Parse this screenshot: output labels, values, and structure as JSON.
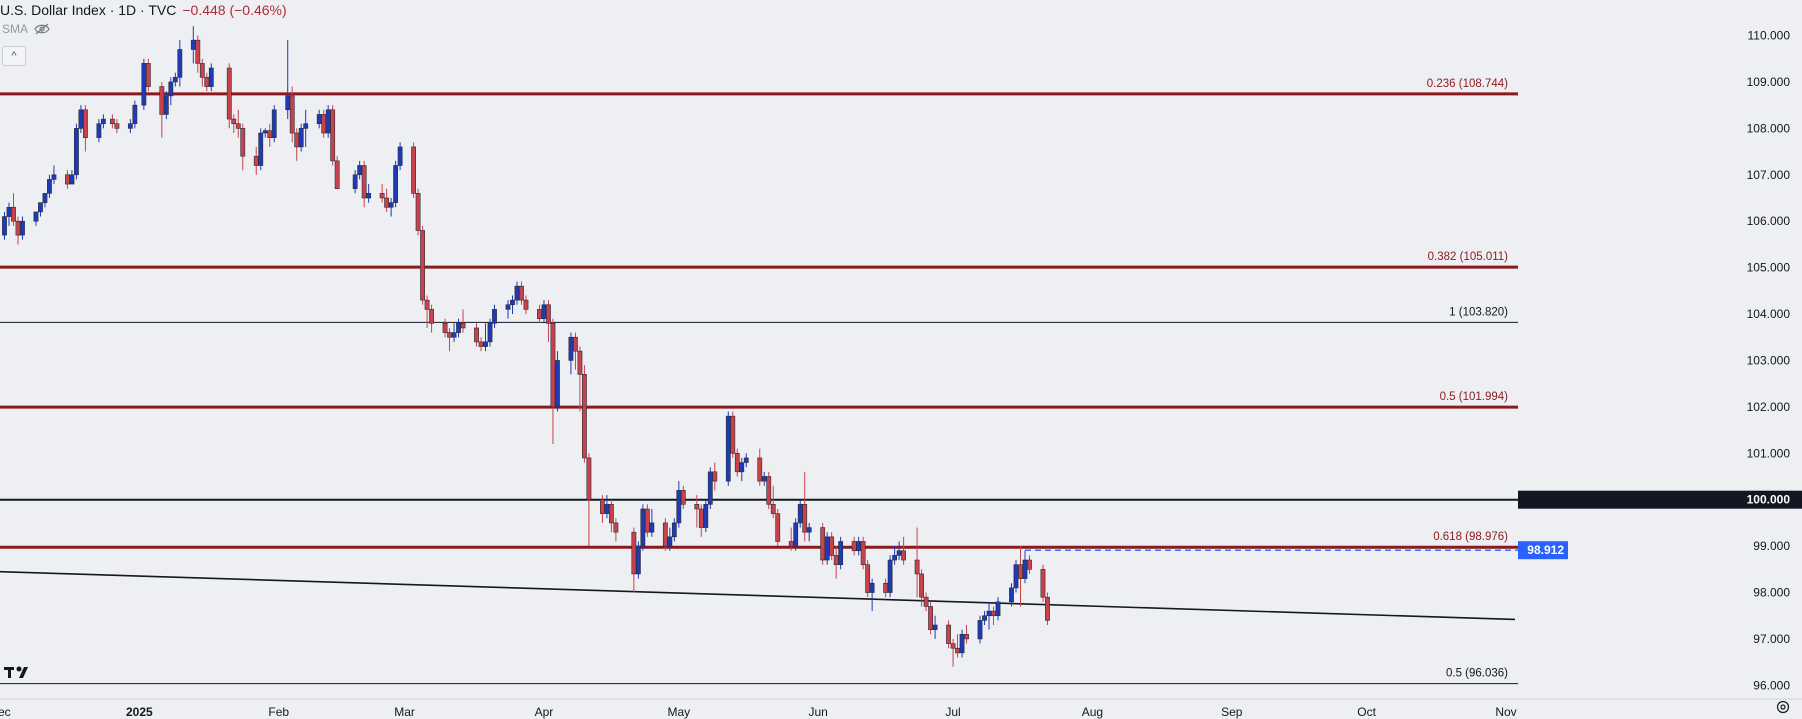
{
  "header": {
    "title": "U.S. Dollar Index · 1D · TVC",
    "change": "−0.448 (−0.46%)",
    "sma_label": "SMA",
    "collapse_glyph": "^"
  },
  "icons": {
    "visibility": "eye-slash-icon",
    "logo": "tradingview-logo-icon",
    "settings": "gear-icon"
  },
  "colors": {
    "bg": "#eeeff2",
    "up": "#1e3ab5",
    "down": "#c8424c",
    "fib": "#8b1a1f",
    "text": "#131722",
    "fib_text": "#8b1a1f",
    "price_badge": "#2962ff"
  },
  "chart_data": {
    "type": "candlestick",
    "x_axis_labels": [
      {
        "label": "Dec",
        "date": "2024-12-01",
        "bold": false
      },
      {
        "label": "2025",
        "date": "2025-01-01",
        "bold": true
      },
      {
        "label": "Feb",
        "date": "2025-02-01",
        "bold": false
      },
      {
        "label": "Mar",
        "date": "2025-03-01",
        "bold": false
      },
      {
        "label": "Apr",
        "date": "2025-04-01",
        "bold": false
      },
      {
        "label": "May",
        "date": "2025-05-01",
        "bold": false
      },
      {
        "label": "Jun",
        "date": "2025-06-01",
        "bold": false
      },
      {
        "label": "Jul",
        "date": "2025-07-01",
        "bold": false
      },
      {
        "label": "Aug",
        "date": "2025-08-01",
        "bold": false
      },
      {
        "label": "Sep",
        "date": "2025-09-01",
        "bold": false
      },
      {
        "label": "Oct",
        "date": "2025-10-01",
        "bold": false
      },
      {
        "label": "Nov",
        "date": "2025-11-01",
        "bold": false
      }
    ],
    "y_axis_labels": [
      "110.000",
      "109.000",
      "108.000",
      "107.000",
      "106.000",
      "105.000",
      "104.000",
      "103.000",
      "102.000",
      "101.000",
      "100.000",
      "99.000",
      "98.000",
      "97.000",
      "96.000"
    ],
    "y_range": [
      95.9,
      110.55
    ],
    "x_range": [
      "2024-12-01",
      "2025-11-03"
    ],
    "levels": [
      {
        "value": 108.744,
        "label": "0.236 (108.744)",
        "style": "fib"
      },
      {
        "value": 105.011,
        "label": "0.382 (105.011)",
        "style": "fib"
      },
      {
        "value": 103.82,
        "label": "1 (103.820)",
        "style": "thin"
      },
      {
        "value": 101.994,
        "label": "0.5 (101.994)",
        "style": "fib"
      },
      {
        "value": 100.0,
        "label": "100.000",
        "style": "round",
        "badge": "100.000"
      },
      {
        "value": 98.976,
        "label": "0.618 (98.976)",
        "style": "fib"
      },
      {
        "value": 96.036,
        "label": "0.5 (96.036)",
        "style": "thin"
      }
    ],
    "trendline": {
      "start_date": "2024-12-01",
      "start_value": 98.45,
      "end_date": "2025-11-03",
      "end_value": 97.42
    },
    "last_price": {
      "value": 98.912,
      "label": "98.912",
      "from_date": "2025-07-17"
    },
    "candles": [
      [
        "2024-12-02",
        105.7,
        106.2,
        105.6,
        106.1
      ],
      [
        "2024-12-03",
        106.1,
        106.4,
        105.9,
        106.3
      ],
      [
        "2024-12-04",
        106.3,
        106.6,
        105.9,
        106.0
      ],
      [
        "2024-12-05",
        106.0,
        106.1,
        105.5,
        105.7
      ],
      [
        "2024-12-06",
        105.7,
        106.1,
        105.6,
        106.0
      ],
      [
        "2024-12-09",
        106.0,
        106.2,
        105.9,
        106.2
      ],
      [
        "2024-12-10",
        106.2,
        106.4,
        106.1,
        106.4
      ],
      [
        "2024-12-11",
        106.4,
        106.6,
        106.3,
        106.6
      ],
      [
        "2024-12-12",
        106.6,
        107.0,
        106.5,
        106.9
      ],
      [
        "2024-12-13",
        106.9,
        107.2,
        106.8,
        107.0
      ],
      [
        "2024-12-16",
        107.0,
        107.1,
        106.7,
        106.8
      ],
      [
        "2024-12-17",
        106.8,
        107.1,
        106.8,
        107.0
      ],
      [
        "2024-12-18",
        107.0,
        108.1,
        106.9,
        108.0
      ],
      [
        "2024-12-19",
        108.0,
        108.5,
        107.9,
        108.4
      ],
      [
        "2024-12-20",
        108.4,
        108.5,
        107.5,
        107.8
      ],
      [
        "2024-12-23",
        107.8,
        108.2,
        107.7,
        108.1
      ],
      [
        "2024-12-24",
        108.1,
        108.3,
        108.0,
        108.2
      ],
      [
        "2024-12-26",
        108.2,
        108.3,
        108.0,
        108.1
      ],
      [
        "2024-12-27",
        108.1,
        108.2,
        107.9,
        108.0
      ],
      [
        "2024-12-30",
        108.0,
        108.2,
        107.9,
        108.1
      ],
      [
        "2024-12-31",
        108.1,
        108.6,
        108.0,
        108.5
      ],
      [
        "2025-01-02",
        108.5,
        109.5,
        108.4,
        109.4
      ],
      [
        "2025-01-03",
        109.4,
        109.5,
        108.8,
        108.9
      ],
      [
        "2025-01-06",
        108.9,
        109.0,
        107.8,
        108.3
      ],
      [
        "2025-01-07",
        108.3,
        108.8,
        108.2,
        108.7
      ],
      [
        "2025-01-08",
        108.7,
        109.1,
        108.5,
        109.0
      ],
      [
        "2025-01-09",
        109.0,
        109.2,
        108.9,
        109.1
      ],
      [
        "2025-01-10",
        109.1,
        109.9,
        108.9,
        109.7
      ],
      [
        "2025-01-13",
        109.7,
        110.2,
        109.4,
        109.9
      ],
      [
        "2025-01-14",
        109.9,
        110.0,
        109.2,
        109.4
      ],
      [
        "2025-01-15",
        109.4,
        109.5,
        108.9,
        109.1
      ],
      [
        "2025-01-16",
        109.1,
        109.2,
        108.8,
        108.9
      ],
      [
        "2025-01-17",
        108.9,
        109.4,
        108.8,
        109.3
      ],
      [
        "2025-01-21",
        109.3,
        109.4,
        108.0,
        108.2
      ],
      [
        "2025-01-22",
        108.2,
        108.3,
        107.9,
        108.1
      ],
      [
        "2025-01-23",
        108.1,
        108.4,
        107.8,
        108.0
      ],
      [
        "2025-01-24",
        108.0,
        108.1,
        107.1,
        107.4
      ],
      [
        "2025-01-27",
        107.4,
        107.6,
        107.0,
        107.2
      ],
      [
        "2025-01-28",
        107.2,
        108.0,
        107.1,
        107.9
      ],
      [
        "2025-01-29",
        107.9,
        108.0,
        107.8,
        107.95
      ],
      [
        "2025-01-30",
        107.95,
        108.1,
        107.6,
        107.8
      ],
      [
        "2025-01-31",
        107.8,
        108.5,
        107.7,
        108.4
      ],
      [
        "2025-02-03",
        108.4,
        109.9,
        108.2,
        108.7
      ],
      [
        "2025-02-04",
        108.7,
        108.9,
        107.7,
        107.9
      ],
      [
        "2025-02-05",
        107.9,
        108.0,
        107.3,
        107.6
      ],
      [
        "2025-02-06",
        107.6,
        108.1,
        107.5,
        108.0
      ],
      [
        "2025-02-07",
        108.0,
        108.4,
        107.6,
        108.1
      ],
      [
        "2025-02-10",
        108.1,
        108.4,
        108.0,
        108.3
      ],
      [
        "2025-02-11",
        108.3,
        108.4,
        107.8,
        107.9
      ],
      [
        "2025-02-12",
        107.9,
        108.5,
        107.8,
        108.4
      ],
      [
        "2025-02-13",
        108.4,
        108.5,
        107.2,
        107.3
      ],
      [
        "2025-02-14",
        107.3,
        107.4,
        106.8,
        106.7
      ],
      [
        "2025-02-18",
        106.7,
        107.1,
        106.6,
        107.0
      ],
      [
        "2025-02-19",
        107.0,
        107.3,
        106.9,
        107.2
      ],
      [
        "2025-02-20",
        107.2,
        107.3,
        106.3,
        106.5
      ],
      [
        "2025-02-21",
        106.5,
        106.8,
        106.4,
        106.6
      ],
      [
        "2025-02-24",
        106.6,
        106.8,
        106.4,
        106.5
      ],
      [
        "2025-02-25",
        106.5,
        106.7,
        106.2,
        106.3
      ],
      [
        "2025-02-26",
        106.3,
        106.5,
        106.1,
        106.4
      ],
      [
        "2025-02-27",
        106.4,
        107.3,
        106.3,
        107.2
      ],
      [
        "2025-02-28",
        107.2,
        107.7,
        107.1,
        107.6
      ],
      [
        "2025-03-03",
        107.6,
        107.7,
        106.5,
        106.6
      ],
      [
        "2025-03-04",
        106.6,
        106.7,
        105.7,
        105.8
      ],
      [
        "2025-03-05",
        105.8,
        105.9,
        104.2,
        104.3
      ],
      [
        "2025-03-06",
        104.3,
        104.4,
        103.7,
        104.1
      ],
      [
        "2025-03-07",
        104.1,
        104.2,
        103.6,
        103.8
      ],
      [
        "2025-03-10",
        103.8,
        103.9,
        103.5,
        103.6
      ],
      [
        "2025-03-11",
        103.6,
        103.7,
        103.2,
        103.5
      ],
      [
        "2025-03-12",
        103.5,
        103.8,
        103.4,
        103.6
      ],
      [
        "2025-03-13",
        103.6,
        103.9,
        103.5,
        103.8
      ],
      [
        "2025-03-14",
        103.8,
        104.1,
        103.6,
        103.7
      ],
      [
        "2025-03-17",
        103.7,
        103.8,
        103.3,
        103.4
      ],
      [
        "2025-03-18",
        103.4,
        103.5,
        103.2,
        103.3
      ],
      [
        "2025-03-19",
        103.3,
        103.8,
        103.2,
        103.4
      ],
      [
        "2025-03-20",
        103.4,
        103.9,
        103.3,
        103.8
      ],
      [
        "2025-03-21",
        103.8,
        104.2,
        103.7,
        104.1
      ],
      [
        "2025-03-24",
        104.1,
        104.3,
        103.9,
        104.2
      ],
      [
        "2025-03-25",
        104.2,
        104.4,
        104.0,
        104.3
      ],
      [
        "2025-03-26",
        104.3,
        104.7,
        104.2,
        104.6
      ],
      [
        "2025-03-27",
        104.6,
        104.7,
        104.2,
        104.3
      ],
      [
        "2025-03-28",
        104.3,
        104.4,
        104.0,
        104.1
      ],
      [
        "2025-03-31",
        104.1,
        104.2,
        103.8,
        103.9
      ],
      [
        "2025-04-01",
        103.9,
        104.3,
        103.8,
        104.2
      ],
      [
        "2025-04-02",
        104.2,
        104.3,
        103.4,
        103.8
      ],
      [
        "2025-04-03",
        103.8,
        103.9,
        101.2,
        102.0
      ],
      [
        "2025-04-04",
        102.0,
        103.2,
        101.9,
        103.0
      ],
      [
        "2025-04-07",
        103.0,
        103.6,
        102.7,
        103.5
      ],
      [
        "2025-04-08",
        103.5,
        103.6,
        102.8,
        103.2
      ],
      [
        "2025-04-09",
        103.2,
        103.3,
        101.9,
        102.7
      ],
      [
        "2025-04-10",
        102.7,
        102.9,
        100.8,
        100.9
      ],
      [
        "2025-04-11",
        100.9,
        101.0,
        99.0,
        100.0
      ],
      [
        "2025-04-14",
        100.0,
        100.1,
        99.5,
        99.7
      ],
      [
        "2025-04-15",
        99.7,
        100.1,
        99.6,
        99.9
      ],
      [
        "2025-04-16",
        99.9,
        100.0,
        99.3,
        99.5
      ],
      [
        "2025-04-17",
        99.5,
        99.6,
        99.1,
        99.3
      ],
      [
        "2025-04-21",
        99.3,
        99.4,
        98.0,
        98.4
      ],
      [
        "2025-04-22",
        98.4,
        99.1,
        98.3,
        99.0
      ],
      [
        "2025-04-23",
        99.0,
        99.9,
        98.9,
        99.8
      ],
      [
        "2025-04-24",
        99.8,
        99.9,
        99.2,
        99.3
      ],
      [
        "2025-04-25",
        99.3,
        99.8,
        99.2,
        99.5
      ],
      [
        "2025-04-28",
        99.5,
        99.6,
        98.9,
        99.0
      ],
      [
        "2025-04-29",
        99.0,
        99.4,
        98.9,
        99.2
      ],
      [
        "2025-04-30",
        99.2,
        99.6,
        99.1,
        99.5
      ],
      [
        "2025-05-01",
        99.5,
        100.4,
        99.4,
        100.2
      ],
      [
        "2025-05-02",
        100.2,
        100.3,
        99.8,
        99.9
      ],
      [
        "2025-05-05",
        99.9,
        100.1,
        99.4,
        99.8
      ],
      [
        "2025-05-06",
        99.8,
        99.9,
        99.2,
        99.4
      ],
      [
        "2025-05-07",
        99.4,
        100.0,
        99.3,
        99.9
      ],
      [
        "2025-05-08",
        99.9,
        100.7,
        99.8,
        100.6
      ],
      [
        "2025-05-09",
        100.6,
        100.8,
        100.2,
        100.4
      ],
      [
        "2025-05-12",
        100.4,
        101.9,
        100.3,
        101.8
      ],
      [
        "2025-05-13",
        101.8,
        101.9,
        100.9,
        101.0
      ],
      [
        "2025-05-14",
        101.0,
        101.1,
        100.5,
        100.6
      ],
      [
        "2025-05-15",
        100.6,
        100.9,
        100.4,
        100.8
      ],
      [
        "2025-05-16",
        100.8,
        101.0,
        100.7,
        100.9
      ],
      [
        "2025-05-19",
        100.9,
        101.1,
        100.3,
        100.4
      ],
      [
        "2025-05-20",
        100.4,
        100.6,
        100.3,
        100.5
      ],
      [
        "2025-05-21",
        100.5,
        100.6,
        99.8,
        99.9
      ],
      [
        "2025-05-22",
        99.9,
        100.3,
        99.6,
        99.7
      ],
      [
        "2025-05-23",
        99.7,
        99.8,
        99.0,
        99.1
      ],
      [
        "2025-05-26",
        99.1,
        99.4,
        98.9,
        99.0
      ],
      [
        "2025-05-27",
        99.0,
        99.6,
        98.9,
        99.5
      ],
      [
        "2025-05-28",
        99.5,
        100.0,
        99.4,
        99.9
      ],
      [
        "2025-05-29",
        99.9,
        100.6,
        99.1,
        99.3
      ],
      [
        "2025-05-30",
        99.3,
        99.5,
        99.1,
        99.4
      ],
      [
        "2025-06-02",
        99.4,
        99.5,
        98.6,
        98.7
      ],
      [
        "2025-06-03",
        98.7,
        99.3,
        98.6,
        99.2
      ],
      [
        "2025-06-04",
        99.2,
        99.3,
        98.7,
        98.8
      ],
      [
        "2025-06-05",
        98.8,
        99.0,
        98.3,
        98.6
      ],
      [
        "2025-06-06",
        98.6,
        99.2,
        98.5,
        99.1
      ],
      [
        "2025-06-09",
        99.1,
        99.2,
        98.8,
        98.9
      ],
      [
        "2025-06-10",
        98.9,
        99.2,
        98.8,
        99.1
      ],
      [
        "2025-06-11",
        99.1,
        99.2,
        98.5,
        98.6
      ],
      [
        "2025-06-12",
        98.6,
        98.7,
        97.9,
        98.0
      ],
      [
        "2025-06-13",
        98.0,
        98.3,
        97.6,
        98.2
      ],
      [
        "2025-06-16",
        98.2,
        98.3,
        97.9,
        98.0
      ],
      [
        "2025-06-17",
        98.0,
        98.8,
        97.9,
        98.7
      ],
      [
        "2025-06-18",
        98.7,
        99.0,
        98.6,
        98.8
      ],
      [
        "2025-06-19",
        98.8,
        99.1,
        98.7,
        98.9
      ],
      [
        "2025-06-20",
        98.9,
        99.2,
        98.6,
        98.7
      ],
      [
        "2025-06-23",
        98.7,
        99.4,
        97.9,
        98.4
      ],
      [
        "2025-06-24",
        98.4,
        98.5,
        97.7,
        97.9
      ],
      [
        "2025-06-25",
        97.9,
        98.0,
        97.6,
        97.7
      ],
      [
        "2025-06-26",
        97.7,
        97.8,
        97.1,
        97.2
      ],
      [
        "2025-06-27",
        97.2,
        97.5,
        97.0,
        97.3
      ],
      [
        "2025-06-30",
        97.3,
        97.4,
        96.8,
        96.9
      ],
      [
        "2025-07-01",
        96.9,
        97.0,
        96.4,
        96.8
      ],
      [
        "2025-07-02",
        96.8,
        97.1,
        96.6,
        96.7
      ],
      [
        "2025-07-03",
        96.7,
        97.2,
        96.6,
        97.1
      ],
      [
        "2025-07-04",
        97.1,
        97.3,
        96.9,
        97.0
      ],
      [
        "2025-07-07",
        97.0,
        97.5,
        96.9,
        97.4
      ],
      [
        "2025-07-08",
        97.4,
        97.6,
        97.3,
        97.5
      ],
      [
        "2025-07-09",
        97.5,
        97.8,
        97.2,
        97.6
      ],
      [
        "2025-07-10",
        97.6,
        97.7,
        97.3,
        97.5
      ],
      [
        "2025-07-11",
        97.5,
        97.9,
        97.4,
        97.8
      ],
      [
        "2025-07-14",
        97.8,
        98.2,
        97.7,
        98.1
      ],
      [
        "2025-07-15",
        98.1,
        98.7,
        98.0,
        98.6
      ],
      [
        "2025-07-16",
        98.6,
        99.0,
        97.7,
        98.3
      ],
      [
        "2025-07-17",
        98.3,
        98.9,
        98.2,
        98.7
      ],
      [
        "2025-07-18",
        98.7,
        98.8,
        98.4,
        98.5
      ],
      [
        "2025-07-21",
        98.5,
        98.6,
        97.8,
        97.9
      ],
      [
        "2025-07-22",
        97.9,
        98.0,
        97.3,
        97.4
      ]
    ]
  }
}
